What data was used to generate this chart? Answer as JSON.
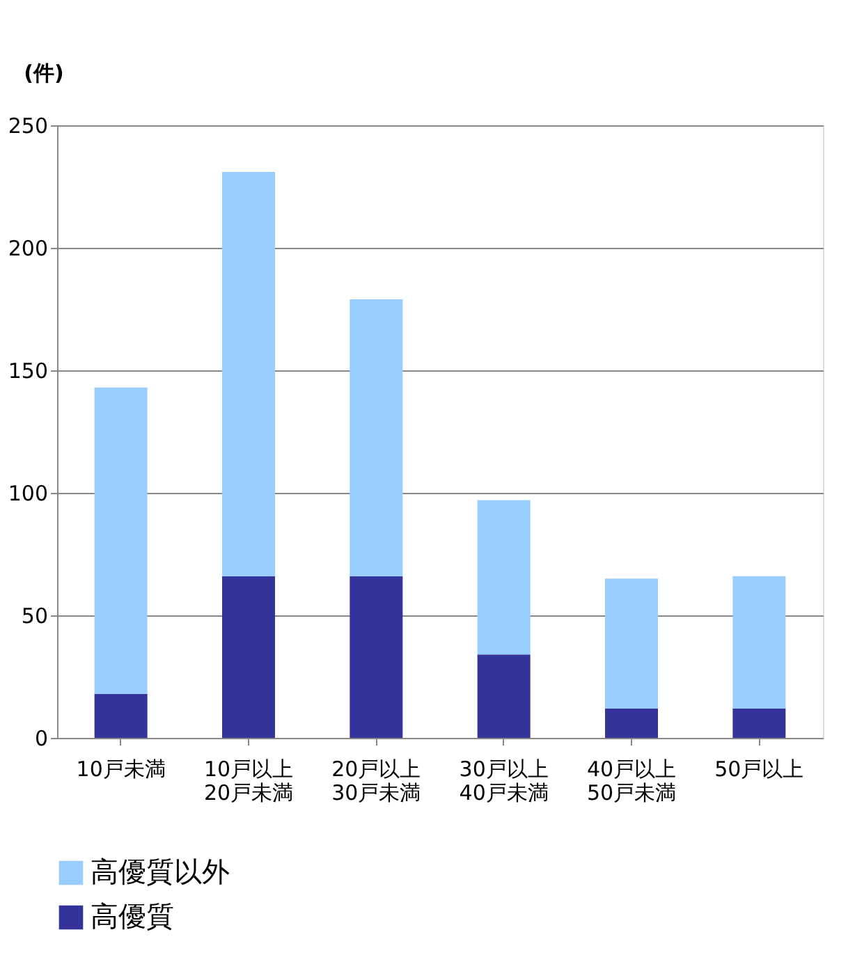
{
  "chart_data": {
    "type": "bar",
    "stacked": true,
    "ylabel": "(件)",
    "categories": [
      "10戸未満",
      "10戸以上\n20戸未満",
      "20戸以上\n30戸未満",
      "30戸以上\n40戸未満",
      "40戸以上\n50戸未満",
      "50戸以上"
    ],
    "series": [
      {
        "name": "高優質",
        "color": "#333399",
        "values": [
          18,
          66,
          66,
          34,
          12,
          12
        ]
      },
      {
        "name": "高優質以外",
        "color": "#99ccff",
        "values": [
          125,
          165,
          113,
          63,
          53,
          54
        ]
      }
    ],
    "ylim": [
      0,
      250
    ],
    "yticks": [
      0,
      50,
      100,
      150,
      200,
      250
    ],
    "grid": "y",
    "legend": "bottom"
  }
}
